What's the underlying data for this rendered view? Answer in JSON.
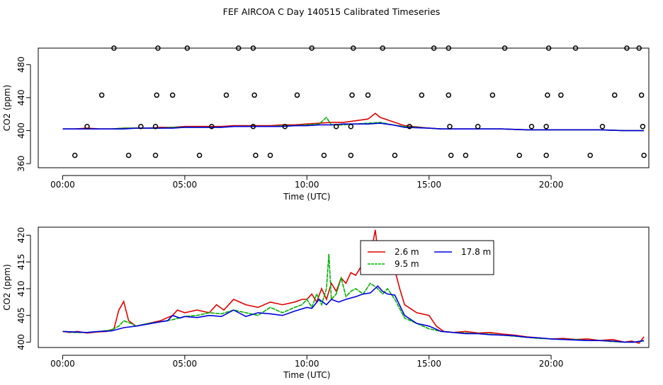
{
  "page_title": "FEF AIRCOA C  Day 140515  Calibrated Timeseries",
  "chart_data": [
    {
      "type": "line",
      "title": "",
      "xlabel": "Time (UTC)",
      "ylabel": "CO2 (ppm)",
      "xlim": [
        -1,
        24
      ],
      "ylim": [
        355,
        500
      ],
      "xticks": [
        0,
        5,
        10,
        15,
        20
      ],
      "xtick_labels": [
        "00:00",
        "05:00",
        "10:00",
        "15:00",
        "20:00"
      ],
      "yticks": [
        360,
        400,
        440,
        480
      ],
      "ytick_labels": [
        "360",
        "400",
        "440",
        "480"
      ],
      "grid": false,
      "legend": "none",
      "series": [
        {
          "color": "#e00000",
          "x": [
            0,
            0.5,
            1,
            1.5,
            2,
            2.5,
            3,
            3.5,
            4,
            4.5,
            5,
            5.5,
            6,
            6.5,
            7,
            7.5,
            8,
            8.5,
            9,
            9.5,
            10,
            10.5,
            11,
            11.5,
            12,
            12.5,
            12.8,
            13,
            13.5,
            14,
            15,
            15.5,
            16,
            17,
            18,
            19,
            20,
            21,
            22,
            23,
            23.8
          ],
          "y": [
            402,
            402,
            403,
            402,
            402,
            403,
            403,
            403,
            404,
            404,
            405,
            405,
            405,
            405,
            406,
            406,
            406,
            406,
            407,
            407,
            408,
            409,
            410,
            410,
            412,
            414,
            421,
            416,
            411,
            406,
            403,
            402,
            402,
            402,
            402,
            401,
            401,
            401,
            401,
            400,
            400
          ]
        },
        {
          "color": "#00b000",
          "x": [
            0,
            0.5,
            1,
            1.5,
            2,
            2.5,
            3,
            3.5,
            4,
            4.5,
            5,
            5.5,
            6,
            6.5,
            7,
            7.5,
            8,
            8.5,
            9,
            9.5,
            10,
            10.5,
            10.8,
            11,
            11.5,
            12,
            12.5,
            13,
            13.5,
            14,
            15,
            15.5,
            16,
            17,
            18,
            19,
            20,
            21,
            22,
            23,
            23.8
          ],
          "y": [
            402,
            402,
            402,
            402,
            402,
            403,
            403,
            403,
            403,
            404,
            404,
            404,
            404,
            404,
            405,
            405,
            405,
            405,
            406,
            406,
            407,
            408,
            416,
            407,
            407,
            408,
            409,
            410,
            407,
            405,
            403,
            402,
            402,
            402,
            402,
            401,
            401,
            401,
            401,
            400,
            400
          ]
        },
        {
          "color": "#0000e0",
          "x": [
            0,
            0.5,
            1,
            1.5,
            2,
            2.5,
            3,
            3.5,
            4,
            4.5,
            5,
            5.5,
            6,
            6.5,
            7,
            7.5,
            8,
            8.5,
            9,
            9.5,
            10,
            10.5,
            11,
            11.5,
            12,
            12.5,
            13,
            13.5,
            14,
            15,
            15.5,
            16,
            17,
            18,
            19,
            20,
            21,
            22,
            23,
            23.8
          ],
          "y": [
            402,
            402,
            402,
            402,
            402,
            402,
            403,
            403,
            403,
            403,
            404,
            404,
            404,
            404,
            405,
            405,
            405,
            405,
            405,
            406,
            406,
            407,
            407,
            408,
            408,
            408,
            409,
            407,
            404,
            403,
            402,
            402,
            402,
            402,
            401,
            401,
            401,
            401,
            400,
            400
          ]
        }
      ],
      "points": {
        "label": "circles",
        "x": [
          0.5,
          2.1,
          2.7,
          3.8,
          3.9,
          5.1,
          5.6,
          7.2,
          7.8,
          7.9,
          8.5,
          10.2,
          10.7,
          11.8,
          11.9,
          13.1,
          13.6,
          15.2,
          15.8,
          15.9,
          16.5,
          18.1,
          18.7,
          19.8,
          19.9,
          21.0,
          21.6,
          23.1,
          23.6,
          23.8,
          1.0,
          1.6,
          3.2,
          3.8,
          3.85,
          4.5,
          6.1,
          6.7,
          7.8,
          7.85,
          9.1,
          9.6,
          11.2,
          11.8,
          11.85,
          12.5,
          14.2,
          14.7,
          15.8,
          15.85,
          17.0,
          17.6,
          19.2,
          19.8,
          19.85,
          20.4,
          22.1,
          22.6,
          23.7,
          23.75
        ],
        "y": [
          370,
          500,
          370,
          370,
          500,
          500,
          370,
          500,
          500,
          370,
          370,
          500,
          370,
          370,
          500,
          500,
          370,
          500,
          500,
          370,
          370,
          500,
          370,
          370,
          500,
          500,
          370,
          500,
          500,
          370,
          405,
          443,
          405,
          405,
          443,
          443,
          405,
          443,
          405,
          443,
          405,
          443,
          405,
          405,
          443,
          443,
          405,
          443,
          443,
          405,
          405,
          443,
          405,
          405,
          443,
          443,
          405,
          443,
          443,
          405
        ]
      }
    },
    {
      "type": "line",
      "title": "",
      "xlabel": "Time (UTC)",
      "ylabel": "CO2 (ppm)",
      "xlim": [
        -1,
        24
      ],
      "ylim": [
        399,
        421.5
      ],
      "xticks": [
        0,
        5,
        10,
        15,
        20
      ],
      "xtick_labels": [
        "00:00",
        "05:00",
        "10:00",
        "15:00",
        "20:00"
      ],
      "yticks": [
        400,
        405,
        410,
        415,
        420
      ],
      "ytick_labels": [
        "400",
        "405",
        "410",
        "415",
        "420"
      ],
      "grid": false,
      "legend": "top-right",
      "series": [
        {
          "name": "2.6 m",
          "color": "#e00000",
          "x": [
            0,
            0.3,
            0.6,
            1,
            1.4,
            1.8,
            2.1,
            2.3,
            2.5,
            2.7,
            3,
            3.5,
            4,
            4.5,
            4.7,
            5,
            5.5,
            6,
            6.3,
            6.6,
            7,
            7.5,
            8,
            8.5,
            9,
            9.5,
            9.8,
            10,
            10.2,
            10.4,
            10.6,
            10.8,
            11,
            11.2,
            11.4,
            11.6,
            11.8,
            12,
            12.2,
            12.4,
            12.6,
            12.8,
            12.9,
            13,
            13.2,
            13.4,
            13.6,
            13.8,
            14,
            14.5,
            15,
            15.3,
            15.6,
            16,
            16.5,
            17,
            17.5,
            18,
            18.5,
            19,
            19.5,
            20,
            20.5,
            21,
            21.5,
            22,
            22.5,
            23,
            23.3,
            23.6,
            23.8
          ],
          "y": [
            402,
            401.8,
            402,
            401.7,
            401.9,
            402,
            402.5,
            406,
            407.6,
            404,
            403,
            403.5,
            404,
            405,
            406,
            405.5,
            406,
            405.5,
            407,
            406,
            408,
            407,
            406.5,
            407.5,
            407,
            407.5,
            408,
            408,
            409,
            407.5,
            410,
            408,
            411,
            409.5,
            412,
            411,
            413,
            412.5,
            414,
            413.5,
            416,
            421,
            417,
            413,
            415,
            414,
            413.5,
            410,
            407,
            405.5,
            405,
            403,
            402,
            401.8,
            402,
            401.7,
            401.8,
            401.5,
            401.3,
            401,
            400.8,
            400.6,
            400.7,
            400.5,
            400.6,
            400.3,
            400.5,
            400,
            400.2,
            399.8,
            401
          ]
        },
        {
          "name": "9.5 m",
          "color": "#00b000",
          "x": [
            0,
            0.5,
            1,
            1.5,
            2,
            2.3,
            2.5,
            2.8,
            3,
            3.5,
            4,
            4.5,
            5,
            5.5,
            6,
            6.5,
            7,
            7.5,
            8,
            8.5,
            9,
            9.5,
            9.8,
            10,
            10.2,
            10.4,
            10.6,
            10.8,
            10.9,
            11,
            11.2,
            11.4,
            11.6,
            11.8,
            12,
            12.3,
            12.6,
            12.9,
            13.1,
            13.3,
            13.6,
            14,
            14.5,
            15,
            15.5,
            16,
            16.5,
            17,
            17.5,
            18,
            18.5,
            19,
            19.5,
            20,
            20.5,
            21,
            21.5,
            22,
            22.5,
            23,
            23.4,
            23.8
          ],
          "y": [
            402,
            401.8,
            401.8,
            402,
            402.3,
            403,
            404,
            403.5,
            403,
            403.5,
            403.8,
            404.2,
            404.8,
            405,
            405.5,
            405.3,
            406,
            405.5,
            405,
            406.5,
            405.5,
            406.5,
            407,
            408,
            406.5,
            409,
            407,
            410,
            416.5,
            408,
            409,
            412,
            408.5,
            409.5,
            410,
            409,
            411,
            410,
            409,
            410,
            408,
            404.5,
            403.5,
            402.5,
            402,
            401.8,
            401.7,
            401.6,
            401.5,
            401.3,
            401.1,
            400.9,
            400.7,
            400.6,
            400.5,
            400.5,
            400.3,
            400.3,
            400.1,
            400,
            400,
            400.2
          ]
        },
        {
          "name": "17.8 m",
          "color": "#0000e0",
          "x": [
            0,
            0.5,
            1,
            1.5,
            2,
            2.5,
            3,
            3.5,
            4,
            4.3,
            4.5,
            4.8,
            5,
            5.5,
            6,
            6.5,
            7,
            7.5,
            8,
            8.5,
            9,
            9.5,
            10,
            10.2,
            10.5,
            10.8,
            11,
            11.3,
            11.6,
            12,
            12.3,
            12.6,
            12.9,
            13.1,
            13.3,
            13.6,
            14,
            14.5,
            15,
            15.5,
            16,
            16.5,
            17,
            17.5,
            18,
            18.5,
            19,
            19.5,
            20,
            20.5,
            21,
            21.5,
            22,
            22.5,
            23,
            23.4,
            23.8
          ],
          "y": [
            402,
            401.9,
            401.8,
            402,
            402.1,
            402.7,
            403,
            403.4,
            403.8,
            404,
            405,
            404.5,
            404.8,
            404.6,
            405,
            404.8,
            406,
            404.8,
            405.5,
            405.3,
            405,
            405.8,
            406.5,
            406.3,
            408,
            407,
            408,
            407.5,
            408,
            408.5,
            409,
            409.2,
            410.5,
            409.5,
            409,
            408.8,
            405,
            403.5,
            403,
            402,
            401.8,
            401.6,
            401.6,
            401.4,
            401.3,
            401.2,
            400.9,
            400.8,
            400.6,
            400.5,
            400.4,
            400.3,
            400.3,
            400.2,
            400,
            400,
            400.3
          ]
        }
      ]
    }
  ]
}
